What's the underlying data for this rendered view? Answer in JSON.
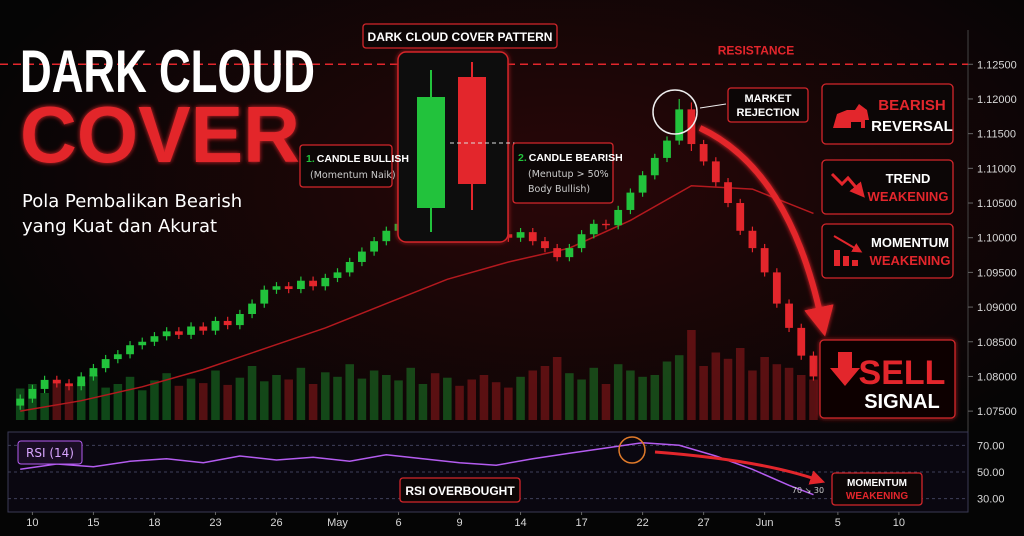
{
  "chart_data": {
    "type": "candlestick",
    "title": [
      "DARK CLOUD",
      "COVER"
    ],
    "subtitle": [
      "Pola Pembalikan Bearish",
      "yang Kuat dan Akurat"
    ],
    "pattern": {
      "title": "DARK CLOUD COVER PATTERN",
      "bullish": {
        "number": "1.",
        "label": "CANDLE BULLISH",
        "note": [
          "(Momentum Naik)"
        ]
      },
      "bearish": {
        "number": "2.",
        "label": "CANDLE BEARISH",
        "note": [
          "(Menutup > 50%",
          "Body Bullish)"
        ]
      }
    },
    "rejection": [
      "MARKET",
      "REJECTION"
    ],
    "panels": [
      [
        "BEARISH",
        "REVERSAL"
      ],
      [
        "TREND",
        "WEAKENING"
      ],
      [
        "MOMENTUM",
        "WEAKENING"
      ]
    ],
    "signal": [
      "SELL",
      "SIGNAL"
    ],
    "resistance": {
      "label": "RESISTANCE",
      "value": 1.125
    },
    "colors": {
      "up": "#22c23c",
      "down": "#e3262c",
      "ma": "#b3191e",
      "rsi": "#b45cf0"
    },
    "xlim": [
      -1,
      77.5
    ],
    "xticks": [
      {
        "value": 1,
        "label": "10"
      },
      {
        "value": 6,
        "label": "15"
      },
      {
        "value": 11,
        "label": "18"
      },
      {
        "value": 16,
        "label": "23"
      },
      {
        "value": 21,
        "label": "26"
      },
      {
        "value": 26,
        "label": "May"
      },
      {
        "value": 31,
        "label": "6"
      },
      {
        "value": 36,
        "label": "9"
      },
      {
        "value": 41,
        "label": "14"
      },
      {
        "value": 46,
        "label": "17"
      },
      {
        "value": 51,
        "label": "22"
      },
      {
        "value": 56,
        "label": "27"
      },
      {
        "value": 61,
        "label": "Jun"
      },
      {
        "value": 67,
        "label": "5"
      },
      {
        "value": 72,
        "label": "10"
      }
    ],
    "ylim": [
      1.073,
      1.1285
    ],
    "yticks": [
      {
        "value": 1.125,
        "label": "1.12500"
      },
      {
        "value": 1.12,
        "label": "1.12000"
      },
      {
        "value": 1.115,
        "label": "1.11500"
      },
      {
        "value": 1.11,
        "label": "1.11000"
      },
      {
        "value": 1.105,
        "label": "1.10500"
      },
      {
        "value": 1.1,
        "label": "1.10000"
      },
      {
        "value": 1.095,
        "label": "1.09500"
      },
      {
        "value": 1.09,
        "label": "1.09000"
      },
      {
        "value": 1.085,
        "label": "1.08500"
      },
      {
        "value": 1.08,
        "label": "1.08000"
      },
      {
        "value": 1.075,
        "label": "1.07500"
      }
    ],
    "open": [
      1.0758,
      1.0768,
      1.0782,
      1.0795,
      1.079,
      1.0786,
      1.08,
      1.0812,
      1.0825,
      1.0832,
      1.0845,
      1.085,
      1.0858,
      1.0865,
      1.086,
      1.0872,
      1.0866,
      1.088,
      1.0874,
      1.089,
      1.0905,
      1.0925,
      1.093,
      1.0926,
      1.0938,
      1.093,
      1.0942,
      1.095,
      1.0965,
      1.098,
      1.0995,
      1.101,
      1.102,
      1.103,
      1.104,
      1.1035,
      1.1045,
      1.103,
      1.102,
      1.101,
      1.1005,
      1.1,
      1.1008,
      1.0995,
      1.0985,
      1.0972,
      1.0985,
      1.1005,
      1.102,
      1.1018,
      1.104,
      1.1065,
      1.109,
      1.1115,
      1.114,
      1.1185,
      1.1135,
      1.111,
      1.108,
      1.105,
      1.101,
      1.0985,
      1.095,
      1.0905,
      1.087,
      1.083
    ],
    "high": [
      1.0774,
      1.0788,
      1.0801,
      1.0801,
      1.0796,
      1.0806,
      1.0818,
      1.0831,
      1.0838,
      1.0851,
      1.0856,
      1.0864,
      1.0871,
      1.0871,
      1.0878,
      1.0878,
      1.0886,
      1.0886,
      1.0896,
      1.0911,
      1.0931,
      1.0936,
      1.0936,
      1.0944,
      1.0944,
      1.0948,
      1.0956,
      1.0971,
      1.0986,
      1.1001,
      1.1016,
      1.1026,
      1.1036,
      1.1046,
      1.1046,
      1.1051,
      1.1051,
      1.1036,
      1.1026,
      1.1016,
      1.1011,
      1.1014,
      1.1014,
      1.1001,
      1.0991,
      1.0991,
      1.1011,
      1.1026,
      1.1026,
      1.1046,
      1.1071,
      1.1096,
      1.1121,
      1.1146,
      1.12,
      1.1195,
      1.1141,
      1.1116,
      1.1086,
      1.1056,
      1.1016,
      1.0991,
      1.0956,
      1.0911,
      1.0876,
      1.0836
    ],
    "low": [
      1.0752,
      1.0762,
      1.0776,
      1.0784,
      1.078,
      1.078,
      1.0794,
      1.0806,
      1.0819,
      1.0826,
      1.0839,
      1.0844,
      1.0852,
      1.0854,
      1.0854,
      1.086,
      1.086,
      1.0868,
      1.0868,
      1.0884,
      1.0899,
      1.0919,
      1.092,
      1.092,
      1.0924,
      1.0924,
      1.0936,
      1.0944,
      1.0959,
      1.0974,
      1.0989,
      1.1004,
      1.1014,
      1.1024,
      1.1029,
      1.1029,
      1.1024,
      1.1014,
      1.1004,
      1.0999,
      1.0994,
      1.0994,
      1.0989,
      1.0979,
      1.0966,
      1.0966,
      1.0979,
      1.0999,
      1.1012,
      1.1012,
      1.1034,
      1.1059,
      1.1084,
      1.1109,
      1.1134,
      1.1125,
      1.1104,
      1.1074,
      1.1044,
      1.1004,
      1.0979,
      1.0944,
      1.0899,
      1.0864,
      1.0824,
      1.0794
    ],
    "close": [
      1.0768,
      1.0782,
      1.0795,
      1.079,
      1.0786,
      1.08,
      1.0812,
      1.0825,
      1.0832,
      1.0845,
      1.085,
      1.0858,
      1.0865,
      1.086,
      1.0872,
      1.0866,
      1.088,
      1.0874,
      1.089,
      1.0905,
      1.0925,
      1.093,
      1.0926,
      1.0938,
      1.093,
      1.0942,
      1.095,
      1.0965,
      1.098,
      1.0995,
      1.101,
      1.102,
      1.103,
      1.104,
      1.1035,
      1.1045,
      1.103,
      1.102,
      1.101,
      1.1005,
      1.1,
      1.1008,
      1.0995,
      1.0985,
      1.0972,
      1.0985,
      1.1005,
      1.102,
      1.1018,
      1.104,
      1.1065,
      1.109,
      1.1115,
      1.114,
      1.1185,
      1.1135,
      1.111,
      1.108,
      1.105,
      1.101,
      1.0985,
      1.095,
      1.0905,
      1.087,
      1.083,
      1.08
    ],
    "vlim": [
      0,
      100
    ],
    "volume": [
      35,
      40,
      30,
      45,
      38,
      42,
      50,
      36,
      40,
      48,
      33,
      44,
      52,
      38,
      46,
      41,
      55,
      39,
      47,
      60,
      43,
      50,
      45,
      58,
      40,
      53,
      48,
      62,
      46,
      55,
      50,
      44,
      58,
      40,
      52,
      47,
      38,
      45,
      50,
      42,
      36,
      48,
      55,
      60,
      70,
      52,
      45,
      58,
      40,
      62,
      55,
      48,
      50,
      65,
      72,
      100,
      60,
      75,
      68,
      80,
      55,
      70,
      62,
      58,
      50,
      45
    ],
    "ma": {
      "x": [
        0,
        5,
        10,
        15,
        20,
        25,
        30,
        35,
        40,
        45,
        50,
        55,
        60,
        65
      ],
      "values": [
        1.075,
        1.0765,
        1.0785,
        1.081,
        1.084,
        1.087,
        1.0905,
        1.094,
        1.0965,
        1.0985,
        1.1025,
        1.1075,
        1.107,
        1.1035
      ]
    },
    "rsi": {
      "name": "RSI (14)",
      "x": [
        0,
        3,
        6,
        9,
        12,
        15,
        18,
        21,
        24,
        27,
        30,
        33,
        36,
        39,
        42,
        45,
        48,
        51,
        54,
        57,
        60,
        63,
        65
      ],
      "values": [
        52,
        56,
        54,
        58,
        60,
        57,
        62,
        59,
        61,
        58,
        63,
        60,
        57,
        55,
        60,
        64,
        68,
        72,
        70,
        62,
        52,
        40,
        33
      ],
      "ylim": [
        20,
        80
      ],
      "yticks": [
        {
          "value": 70,
          "label": "70.00"
        },
        {
          "value": 50,
          "label": "50.00"
        },
        {
          "value": 30,
          "label": "30.00"
        }
      ],
      "label": "RSI OVERBOUGHT",
      "note": "70 ↘ 30",
      "momentum": [
        "MOMENTUM",
        "WEAKENING"
      ]
    }
  }
}
